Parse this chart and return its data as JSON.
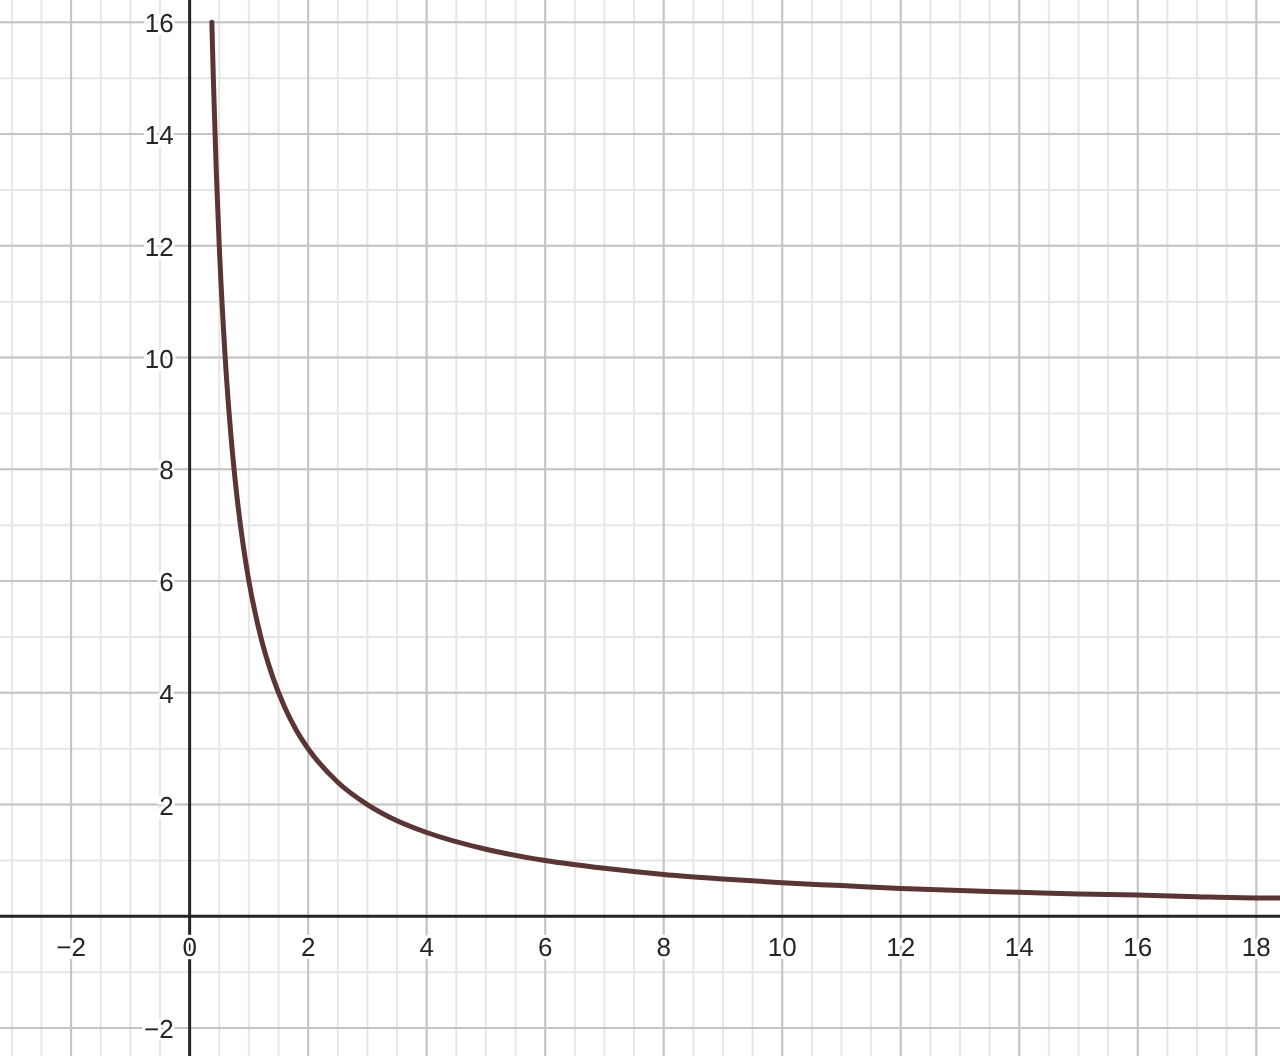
{
  "chart_data": {
    "type": "line",
    "x": [
      0.375,
      0.4,
      0.45,
      0.5,
      0.6,
      0.7,
      0.8,
      0.9,
      1,
      1.2,
      1.4,
      1.6,
      1.8,
      2,
      2.5,
      3,
      3.5,
      4,
      5,
      6,
      7,
      8,
      9,
      10,
      11,
      12,
      13,
      14,
      15,
      16,
      17,
      18,
      18.4
    ],
    "series": [
      {
        "color": "#5b3434",
        "values": [
          16,
          15,
          13.33,
          12,
          10,
          8.57,
          7.5,
          6.67,
          6,
          5,
          4.29,
          3.75,
          3.33,
          3,
          2.4,
          2,
          1.71,
          1.5,
          1.2,
          1,
          0.86,
          0.75,
          0.67,
          0.6,
          0.55,
          0.5,
          0.46,
          0.43,
          0.4,
          0.38,
          0.35,
          0.33,
          0.33
        ]
      }
    ],
    "xlim": [
      -3.2,
      18.4
    ],
    "ylim": [
      -2.5,
      16.4
    ],
    "xticks": [
      -2,
      0,
      2,
      4,
      6,
      8,
      10,
      12,
      14,
      16,
      18
    ],
    "yticks": [
      -2,
      2,
      4,
      6,
      8,
      10,
      12,
      14,
      16
    ],
    "grid": true,
    "marker": "none",
    "line_style": "solid"
  }
}
